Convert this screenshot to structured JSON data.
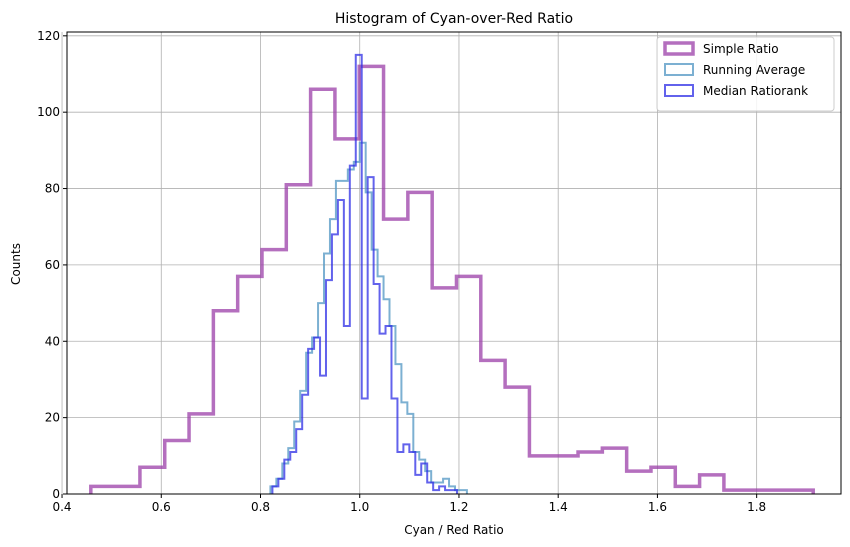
{
  "chart_data": {
    "type": "histogram",
    "title": "Histogram of Cyan-over-Red Ratio",
    "xlabel": "Cyan / Red Ratio",
    "ylabel": "Counts",
    "xlim": [
      0.41,
      1.97
    ],
    "ylim": [
      0,
      121
    ],
    "xticks": [
      0.4,
      0.6,
      0.8,
      1.0,
      1.2,
      1.4,
      1.6,
      1.8
    ],
    "xtick_labels": [
      "0.4",
      "0.6",
      "0.8",
      "1.0",
      "1.2",
      "1.4",
      "1.6",
      "1.8"
    ],
    "yticks": [
      0,
      20,
      40,
      60,
      80,
      100,
      120
    ],
    "ytick_labels": [
      "0",
      "20",
      "40",
      "60",
      "80",
      "100",
      "120"
    ],
    "grid": true,
    "legend_position": "top-right",
    "series": [
      {
        "name": "Simple Ratio",
        "color": "#9b3fa8",
        "opacity": 0.75,
        "stroke_width": 3.5,
        "edges": [
          0.458,
          0.557,
          0.607,
          0.656,
          0.705,
          0.754,
          0.803,
          0.852,
          0.901,
          0.95,
          0.999,
          1.048,
          1.097,
          1.146,
          1.195,
          1.244,
          1.293,
          1.342,
          1.391,
          1.44,
          1.489,
          1.538,
          1.587,
          1.636,
          1.685,
          1.734,
          1.914
        ],
        "counts": [
          2,
          7,
          14,
          21,
          48,
          57,
          64,
          81,
          106,
          93,
          112,
          72,
          79,
          54,
          57,
          35,
          28,
          10,
          10,
          11,
          12,
          6,
          7,
          2,
          5,
          1
        ]
      },
      {
        "name": "Running Average",
        "color": "#5b9cc7",
        "opacity": 0.8,
        "stroke_width": 2,
        "edges": [
          0.82,
          0.832,
          0.844,
          0.856,
          0.868,
          0.88,
          0.892,
          0.904,
          0.916,
          0.928,
          0.94,
          0.952,
          0.964,
          0.976,
          0.988,
          1.0,
          1.012,
          1.024,
          1.036,
          1.048,
          1.06,
          1.072,
          1.084,
          1.096,
          1.108,
          1.12,
          1.132,
          1.144,
          1.156,
          1.168,
          1.18,
          1.192,
          1.204,
          1.216
        ],
        "counts": [
          2,
          4,
          8,
          12,
          19,
          27,
          37,
          41,
          50,
          63,
          72,
          82,
          82,
          85,
          87,
          92,
          79,
          64,
          57,
          51,
          44,
          34,
          24,
          21,
          11,
          9,
          6,
          3,
          3,
          4,
          2,
          1,
          1
        ]
      },
      {
        "name": "Median Ratiorank",
        "color": "#2e2ee6",
        "opacity": 0.75,
        "stroke_width": 2,
        "edges": [
          0.824,
          0.836,
          0.848,
          0.86,
          0.872,
          0.884,
          0.896,
          0.908,
          0.92,
          0.932,
          0.944,
          0.956,
          0.968,
          0.98,
          0.992,
          1.004,
          1.016,
          1.028,
          1.04,
          1.052,
          1.064,
          1.076,
          1.088,
          1.1,
          1.112,
          1.124,
          1.136,
          1.148,
          1.16,
          1.172,
          1.184,
          1.196
        ],
        "counts": [
          2,
          4,
          9,
          11,
          17,
          26,
          38,
          41,
          31,
          56,
          68,
          77,
          44,
          86,
          115,
          25,
          83,
          55,
          42,
          44,
          25,
          11,
          13,
          11,
          5,
          8,
          3,
          1,
          2,
          1,
          1
        ]
      }
    ]
  }
}
